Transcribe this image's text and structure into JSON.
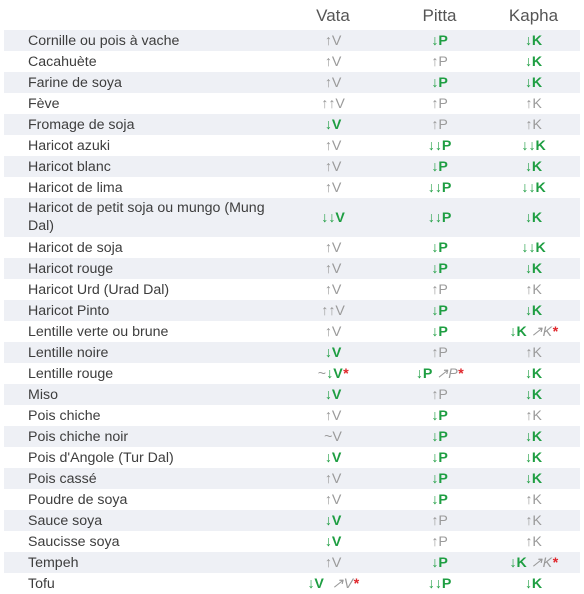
{
  "headers": {
    "name": "",
    "vata": "Vata",
    "pitta": "Pitta",
    "kapha": "Kapha"
  },
  "colors": {
    "decrease": "#1e9e42",
    "increase": "#9a9a9a",
    "note": "#e0262b",
    "row_shade": "#eef0f5"
  },
  "rows": [
    {
      "name": "Cornille ou pois à vache",
      "vata": [
        [
          "up",
          "↑V"
        ]
      ],
      "pitta": [
        [
          "dn",
          "↓P"
        ]
      ],
      "kapha": [
        [
          "dn",
          "↓K"
        ]
      ]
    },
    {
      "name": "Cacahuète",
      "vata": [
        [
          "up",
          "↑V"
        ]
      ],
      "pitta": [
        [
          "up",
          "↑P"
        ]
      ],
      "kapha": [
        [
          "dn",
          "↓K"
        ]
      ]
    },
    {
      "name": "Farine de soya",
      "vata": [
        [
          "up",
          "↑V"
        ]
      ],
      "pitta": [
        [
          "dn",
          "↓P"
        ]
      ],
      "kapha": [
        [
          "dn",
          "↓K"
        ]
      ]
    },
    {
      "name": "Fève",
      "vata": [
        [
          "up",
          "↑↑V"
        ]
      ],
      "pitta": [
        [
          "up",
          "↑P"
        ]
      ],
      "kapha": [
        [
          "up",
          "↑K"
        ]
      ]
    },
    {
      "name": "Fromage de soja",
      "vata": [
        [
          "dn",
          "↓V"
        ]
      ],
      "pitta": [
        [
          "up",
          "↑P"
        ]
      ],
      "kapha": [
        [
          "up",
          "↑K"
        ]
      ]
    },
    {
      "name": "Haricot azuki",
      "vata": [
        [
          "up",
          "↑V"
        ]
      ],
      "pitta": [
        [
          "dn",
          "↓↓P"
        ]
      ],
      "kapha": [
        [
          "dn",
          "↓↓K"
        ]
      ]
    },
    {
      "name": "Haricot blanc",
      "vata": [
        [
          "up",
          "↑V"
        ]
      ],
      "pitta": [
        [
          "dn",
          "↓P"
        ]
      ],
      "kapha": [
        [
          "dn",
          "↓K"
        ]
      ]
    },
    {
      "name": "Haricot de lima",
      "vata": [
        [
          "up",
          "↑V"
        ]
      ],
      "pitta": [
        [
          "dn",
          "↓↓P"
        ]
      ],
      "kapha": [
        [
          "dn",
          "↓↓K"
        ]
      ]
    },
    {
      "name": "Haricot de petit soja ou mungo (Mung Dal)",
      "tall": true,
      "vata": [
        [
          "dn",
          "↓↓V"
        ]
      ],
      "pitta": [
        [
          "dn",
          "↓↓P"
        ]
      ],
      "kapha": [
        [
          "dn",
          "↓K"
        ]
      ]
    },
    {
      "name": "Haricot de soja",
      "vata": [
        [
          "up",
          "↑V"
        ]
      ],
      "pitta": [
        [
          "dn",
          "↓P"
        ]
      ],
      "kapha": [
        [
          "dn",
          "↓↓K"
        ]
      ]
    },
    {
      "name": "Haricot rouge",
      "vata": [
        [
          "up",
          "↑V"
        ]
      ],
      "pitta": [
        [
          "dn",
          "↓P"
        ]
      ],
      "kapha": [
        [
          "dn",
          "↓K"
        ]
      ]
    },
    {
      "name": "Haricot Urd (Urad Dal)",
      "vata": [
        [
          "up",
          "↑V"
        ]
      ],
      "pitta": [
        [
          "up",
          "↑P"
        ]
      ],
      "kapha": [
        [
          "up",
          "↑K"
        ]
      ]
    },
    {
      "name": "Haricot Pinto",
      "vata": [
        [
          "up",
          "↑↑V"
        ]
      ],
      "pitta": [
        [
          "dn",
          "↓P"
        ]
      ],
      "kapha": [
        [
          "dn",
          "↓K"
        ]
      ]
    },
    {
      "name": "Lentille verte ou brune",
      "vata": [
        [
          "up",
          "↑V"
        ]
      ],
      "pitta": [
        [
          "dn",
          "↓P"
        ]
      ],
      "kapha": [
        [
          "dn",
          "↓K"
        ],
        [
          "sp",
          " "
        ],
        [
          "st",
          "↗K"
        ],
        [
          "ast",
          "*"
        ]
      ]
    },
    {
      "name": "Lentille noire",
      "vata": [
        [
          "dn",
          "↓V"
        ]
      ],
      "pitta": [
        [
          "up",
          "↑P"
        ]
      ],
      "kapha": [
        [
          "up",
          "↑K"
        ]
      ]
    },
    {
      "name": "Lentille rouge",
      "vata": [
        [
          "up",
          "~"
        ],
        [
          "dn",
          "↓V"
        ],
        [
          "ast",
          "*"
        ]
      ],
      "pitta": [
        [
          "dn",
          "↓P"
        ],
        [
          "sp",
          " "
        ],
        [
          "st",
          "↗P"
        ],
        [
          "ast",
          "*"
        ]
      ],
      "kapha": [
        [
          "dn",
          "↓K"
        ]
      ]
    },
    {
      "name": "Miso",
      "vata": [
        [
          "dn",
          "↓V"
        ]
      ],
      "pitta": [
        [
          "up",
          "↑P"
        ]
      ],
      "kapha": [
        [
          "dn",
          "↓K"
        ]
      ]
    },
    {
      "name": "Pois chiche",
      "vata": [
        [
          "up",
          "↑V"
        ]
      ],
      "pitta": [
        [
          "dn",
          "↓P"
        ]
      ],
      "kapha": [
        [
          "up",
          "↑K"
        ]
      ]
    },
    {
      "name": "Pois chiche noir",
      "vata": [
        [
          "up",
          "~V"
        ]
      ],
      "pitta": [
        [
          "dn",
          "↓P"
        ]
      ],
      "kapha": [
        [
          "dn",
          "↓K"
        ]
      ]
    },
    {
      "name": "Pois d'Angole (Tur Dal)",
      "vata": [
        [
          "dn",
          "↓V"
        ]
      ],
      "pitta": [
        [
          "dn",
          "↓P"
        ]
      ],
      "kapha": [
        [
          "dn",
          "↓K"
        ]
      ]
    },
    {
      "name": "Pois cassé",
      "vata": [
        [
          "up",
          "↑V"
        ]
      ],
      "pitta": [
        [
          "dn",
          "↓P"
        ]
      ],
      "kapha": [
        [
          "dn",
          "↓K"
        ]
      ]
    },
    {
      "name": "Poudre de soya",
      "vata": [
        [
          "up",
          "↑V"
        ]
      ],
      "pitta": [
        [
          "dn",
          "↓P"
        ]
      ],
      "kapha": [
        [
          "up",
          "↑K"
        ]
      ]
    },
    {
      "name": "Sauce soya",
      "vata": [
        [
          "dn",
          "↓V"
        ]
      ],
      "pitta": [
        [
          "up",
          "↑P"
        ]
      ],
      "kapha": [
        [
          "up",
          "↑K"
        ]
      ]
    },
    {
      "name": "Saucisse soya",
      "vata": [
        [
          "dn",
          "↓V"
        ]
      ],
      "pitta": [
        [
          "up",
          "↑P"
        ]
      ],
      "kapha": [
        [
          "up",
          "↑K"
        ]
      ]
    },
    {
      "name": "Tempeh",
      "vata": [
        [
          "up",
          "↑V"
        ]
      ],
      "pitta": [
        [
          "dn",
          "↓P"
        ]
      ],
      "kapha": [
        [
          "dn",
          "↓K"
        ],
        [
          "sp",
          " "
        ],
        [
          "st",
          "↗K"
        ],
        [
          "ast",
          "*"
        ]
      ]
    },
    {
      "name": "Tofu",
      "vata": [
        [
          "dn",
          "↓V"
        ],
        [
          "sp",
          "  "
        ],
        [
          "st",
          "↗V"
        ],
        [
          "ast",
          "*"
        ]
      ],
      "pitta": [
        [
          "dn",
          "↓↓P"
        ]
      ],
      "kapha": [
        [
          "dn",
          "↓K"
        ]
      ]
    }
  ]
}
